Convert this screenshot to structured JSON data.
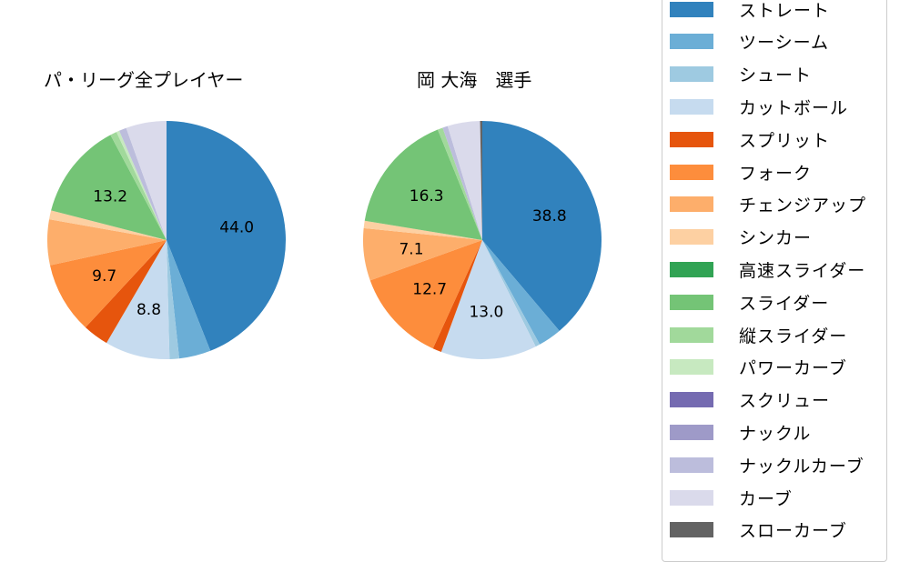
{
  "legend": {
    "items": [
      {
        "label": "ストレート",
        "color": "#3182bd"
      },
      {
        "label": "ツーシーム",
        "color": "#6baed6"
      },
      {
        "label": "シュート",
        "color": "#9ecae1"
      },
      {
        "label": "カットボール",
        "color": "#c6dbef"
      },
      {
        "label": "スプリット",
        "color": "#e6550d"
      },
      {
        "label": "フォーク",
        "color": "#fd8d3c"
      },
      {
        "label": "チェンジアップ",
        "color": "#fdae6b"
      },
      {
        "label": "シンカー",
        "color": "#fdd0a2"
      },
      {
        "label": "高速スライダー",
        "color": "#31a354"
      },
      {
        "label": "スライダー",
        "color": "#74c476"
      },
      {
        "label": "縦スライダー",
        "color": "#a1d99b"
      },
      {
        "label": "パワーカーブ",
        "color": "#c7e9c0"
      },
      {
        "label": "スクリュー",
        "color": "#756bb1"
      },
      {
        "label": "ナックル",
        "color": "#9e9ac8"
      },
      {
        "label": "ナックルカーブ",
        "color": "#bcbddc"
      },
      {
        "label": "カーブ",
        "color": "#dadaeb"
      },
      {
        "label": "スローカーブ",
        "color": "#636363"
      }
    ]
  },
  "chart_data": [
    {
      "type": "pie",
      "title": "パ・リーグ全プレイヤー",
      "start_angle": 90,
      "direction": "clockwise",
      "labels_shown_threshold": 7,
      "slices": [
        {
          "label": "ストレート",
          "value": 44.0,
          "shown_label": "44.0"
        },
        {
          "label": "ツーシーム",
          "value": 4.3
        },
        {
          "label": "シュート",
          "value": 1.3
        },
        {
          "label": "カットボール",
          "value": 8.8,
          "shown_label": "8.8"
        },
        {
          "label": "スプリット",
          "value": 3.5
        },
        {
          "label": "フォーク",
          "value": 9.7,
          "shown_label": "9.7"
        },
        {
          "label": "チェンジアップ",
          "value": 6.2
        },
        {
          "label": "シンカー",
          "value": 1.2
        },
        {
          "label": "スライダー",
          "value": 13.2,
          "shown_label": "13.2"
        },
        {
          "label": "縦スライダー",
          "value": 0.9
        },
        {
          "label": "パワーカーブ",
          "value": 0.4
        },
        {
          "label": "ナックルカーブ",
          "value": 1.0
        },
        {
          "label": "カーブ",
          "value": 5.5
        }
      ]
    },
    {
      "type": "pie",
      "title": "岡 大海　選手",
      "start_angle": 90,
      "direction": "clockwise",
      "labels_shown_threshold": 7,
      "slices": [
        {
          "label": "ストレート",
          "value": 38.8,
          "shown_label": "38.8"
        },
        {
          "label": "ツーシーム",
          "value": 3.2
        },
        {
          "label": "シュート",
          "value": 0.6
        },
        {
          "label": "カットボール",
          "value": 13.0,
          "shown_label": "13.0"
        },
        {
          "label": "スプリット",
          "value": 1.2
        },
        {
          "label": "フォーク",
          "value": 12.7,
          "shown_label": "12.7"
        },
        {
          "label": "チェンジアップ",
          "value": 7.1,
          "shown_label": "7.1"
        },
        {
          "label": "シンカー",
          "value": 1.0
        },
        {
          "label": "スライダー",
          "value": 16.3,
          "shown_label": "16.3"
        },
        {
          "label": "縦スライダー",
          "value": 0.7
        },
        {
          "label": "ナックルカーブ",
          "value": 0.7
        },
        {
          "label": "カーブ",
          "value": 4.4
        },
        {
          "label": "スローカーブ",
          "value": 0.3
        }
      ]
    }
  ]
}
